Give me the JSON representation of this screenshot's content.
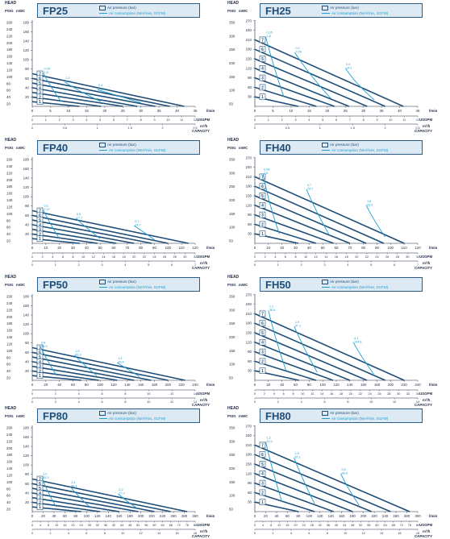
{
  "labels": {
    "head": "HEAD",
    "psig": "PSIG",
    "mwc": "mWC",
    "legend_pressure": "Air pressure (bar)",
    "legend_consumption": "Air consumption (Nm³/min, SCFM)",
    "unit_lmin": "l/min",
    "unit_usgpm": "USGPM",
    "unit_m3h": "m³/h",
    "capacity": "CAPACITY"
  },
  "colors": {
    "pressure": "#1f4e79",
    "consumption": "#1d9fd0",
    "box": "#dde9f3"
  },
  "chart_data": [
    {
      "type": "line",
      "model": "FP25",
      "psig_ticks": [
        "260",
        "240",
        "220",
        "200",
        "180",
        "160",
        "140",
        "120",
        "100",
        "80",
        "60",
        "40",
        "20"
      ],
      "mwc_ticks": [
        "180",
        "160",
        "140",
        "120",
        "100",
        "80",
        "60",
        "40",
        "20"
      ],
      "mwc_max": 185,
      "lmin_ticks": [
        "0",
        "5",
        "10",
        "15",
        "20",
        "25",
        "30",
        "35",
        "40",
        "45"
      ],
      "lmin_max": 45,
      "usgpm_ticks": [
        "0",
        "1",
        "2",
        "3",
        "4",
        "5",
        "6",
        "7",
        "8",
        "9",
        "10",
        "11",
        "12"
      ],
      "m3h_ticks": [
        "0",
        "0,5",
        "1",
        "1,5",
        "2",
        "2,5"
      ],
      "pressure_series": [
        {
          "name": "7",
          "head": 70,
          "qmax": 42
        },
        {
          "name": "6",
          "head": 60,
          "qmax": 38
        },
        {
          "name": "5",
          "head": 50,
          "qmax": 34
        },
        {
          "name": "4",
          "head": 40,
          "qmax": 29
        },
        {
          "name": "3",
          "head": 30,
          "qmax": 25
        },
        {
          "name": "2",
          "head": 20,
          "qmax": 19
        },
        {
          "name": "1",
          "head": 10,
          "qmax": 13
        }
      ],
      "consumption_series": [
        {
          "label1": "0,05",
          "label2": "1,8",
          "x": [
            3,
            5,
            8
          ],
          "y": [
            72,
            42,
            10
          ]
        },
        {
          "label1": "0,2",
          "label2": "7,06",
          "x": [
            9,
            13,
            19
          ],
          "y": [
            52,
            32,
            10
          ]
        },
        {
          "label1": "0,4",
          "label2": "14,1",
          "x": [
            18,
            24,
            30
          ],
          "y": [
            36,
            22,
            8
          ]
        }
      ]
    },
    {
      "type": "line",
      "model": "FH25",
      "psig_ticks": [
        "350",
        "300",
        "250",
        "200",
        "150",
        "100",
        "50"
      ],
      "mwc_ticks": [
        "270",
        "240",
        "210",
        "180",
        "150",
        "120",
        "90",
        "60",
        "30"
      ],
      "mwc_max": 272,
      "lmin_ticks": [
        "0",
        "5",
        "10",
        "15",
        "20",
        "25",
        "30",
        "35",
        "40",
        "45"
      ],
      "lmin_max": 45,
      "usgpm_ticks": [
        "0",
        "1",
        "2",
        "3",
        "4",
        "5",
        "6",
        "7",
        "8",
        "9",
        "10",
        "11",
        "12"
      ],
      "m3h_ticks": [
        "0",
        "0,5",
        "1",
        "1,5",
        "2",
        "2,5"
      ],
      "pressure_series": [
        {
          "name": "7",
          "head": 210,
          "qmax": 41
        },
        {
          "name": "6",
          "head": 180,
          "qmax": 36
        },
        {
          "name": "5",
          "head": 150,
          "qmax": 31
        },
        {
          "name": "4",
          "head": 120,
          "qmax": 26
        },
        {
          "name": "3",
          "head": 90,
          "qmax": 22
        },
        {
          "name": "2",
          "head": 60,
          "qmax": 17
        },
        {
          "name": "1",
          "head": 30,
          "qmax": 12
        }
      ],
      "consumption_series": [
        {
          "label1": "0,05",
          "label2": "1,8",
          "x": [
            3,
            5,
            8
          ],
          "y": [
            220,
            130,
            30
          ]
        },
        {
          "label1": "0,2",
          "label2": "7,06",
          "x": [
            11,
            15,
            21
          ],
          "y": [
            170,
            100,
            25
          ]
        },
        {
          "label1": "0,4",
          "label2": "14,1",
          "x": [
            25,
            28,
            33
          ],
          "y": [
            120,
            70,
            20
          ]
        }
      ]
    },
    {
      "type": "line",
      "model": "FP40",
      "psig_ticks": [
        "260",
        "240",
        "220",
        "200",
        "180",
        "160",
        "140",
        "120",
        "100",
        "80",
        "60",
        "40",
        "20"
      ],
      "mwc_ticks": [
        "180",
        "160",
        "140",
        "120",
        "100",
        "80",
        "60",
        "40",
        "20"
      ],
      "mwc_max": 185,
      "lmin_ticks": [
        "0",
        "10",
        "20",
        "30",
        "40",
        "50",
        "60",
        "70",
        "80",
        "90",
        "100",
        "110",
        "120"
      ],
      "lmin_max": 120,
      "usgpm_ticks": [
        "0",
        "2",
        "4",
        "6",
        "8",
        "10",
        "12",
        "14",
        "16",
        "18",
        "20",
        "22",
        "24",
        "26",
        "28",
        "30",
        "32"
      ],
      "m3h_ticks": [
        "0",
        "1",
        "2",
        "3",
        "4",
        "5",
        "6",
        "7"
      ],
      "pressure_series": [
        {
          "name": "7",
          "head": 70,
          "qmax": 115
        },
        {
          "name": "6",
          "head": 60,
          "qmax": 100
        },
        {
          "name": "5",
          "head": 50,
          "qmax": 88
        },
        {
          "name": "4",
          "head": 40,
          "qmax": 75
        },
        {
          "name": "3",
          "head": 30,
          "qmax": 62
        },
        {
          "name": "2",
          "head": 20,
          "qmax": 48
        },
        {
          "name": "1",
          "head": 10,
          "qmax": 35
        }
      ],
      "consumption_series": [
        {
          "label1": "0,2",
          "label2": "7,07",
          "x": [
            8,
            13,
            20
          ],
          "y": [
            72,
            42,
            10
          ]
        },
        {
          "label1": "0,5",
          "label2": "17,7",
          "x": [
            32,
            40,
            50
          ],
          "y": [
            54,
            33,
            10
          ]
        },
        {
          "label1": "0,7",
          "label2": "24,7",
          "x": [
            75,
            82,
            90
          ],
          "y": [
            38,
            24,
            8
          ]
        }
      ]
    },
    {
      "type": "line",
      "model": "FH40",
      "psig_ticks": [
        "350",
        "300",
        "250",
        "200",
        "150",
        "100",
        "50"
      ],
      "mwc_ticks": [
        "270",
        "240",
        "210",
        "180",
        "150",
        "120",
        "90",
        "60",
        "30"
      ],
      "mwc_max": 272,
      "lmin_ticks": [
        "0",
        "10",
        "20",
        "30",
        "40",
        "50",
        "60",
        "70",
        "80",
        "90",
        "100",
        "110",
        "120"
      ],
      "lmin_max": 120,
      "usgpm_ticks": [
        "0",
        "2",
        "4",
        "6",
        "8",
        "10",
        "12",
        "14",
        "16",
        "18",
        "20",
        "22",
        "24",
        "26",
        "28",
        "30",
        "32"
      ],
      "m3h_ticks": [
        "0",
        "1",
        "2",
        "3",
        "4",
        "5",
        "6",
        "7"
      ],
      "pressure_series": [
        {
          "name": "7",
          "head": 210,
          "qmax": 110
        },
        {
          "name": "6",
          "head": 180,
          "qmax": 95
        },
        {
          "name": "5",
          "head": 150,
          "qmax": 82
        },
        {
          "name": "4",
          "head": 120,
          "qmax": 70
        },
        {
          "name": "3",
          "head": 90,
          "qmax": 58
        },
        {
          "name": "2",
          "head": 60,
          "qmax": 45
        },
        {
          "name": "1",
          "head": 30,
          "qmax": 32
        }
      ],
      "consumption_series": [
        {
          "label1": "0,08",
          "label2": "2,8",
          "x": [
            6,
            10,
            18
          ],
          "y": [
            220,
            130,
            30
          ]
        },
        {
          "label1": "0,7",
          "label2": "24,7",
          "x": [
            38,
            45,
            55
          ],
          "y": [
            170,
            100,
            25
          ]
        },
        {
          "label1": "1,8",
          "label2": "63,5",
          "x": [
            82,
            88,
            96
          ],
          "y": [
            120,
            70,
            20
          ]
        }
      ]
    },
    {
      "type": "line",
      "model": "FP50",
      "psig_ticks": [
        "260",
        "240",
        "220",
        "200",
        "180",
        "160",
        "140",
        "120",
        "100",
        "80",
        "60",
        "40",
        "20"
      ],
      "mwc_ticks": [
        "180",
        "160",
        "140",
        "120",
        "100",
        "80",
        "60",
        "40",
        "20"
      ],
      "mwc_max": 185,
      "lmin_ticks": [
        "0",
        "20",
        "40",
        "60",
        "80",
        "100",
        "120",
        "140",
        "160",
        "180",
        "200",
        "220",
        "240"
      ],
      "lmin_max": 240,
      "usgpm_ticks": [
        "0",
        "2",
        "4",
        "6",
        "8",
        "10",
        "12",
        "14"
      ],
      "m3h_ticks": [
        "0",
        "2",
        "4",
        "6",
        "8",
        "10",
        "12",
        "14"
      ],
      "pressure_series": [
        {
          "name": "7",
          "head": 70,
          "qmax": 225
        },
        {
          "name": "6",
          "head": 60,
          "qmax": 200
        },
        {
          "name": "5",
          "head": 50,
          "qmax": 175
        },
        {
          "name": "4",
          "head": 40,
          "qmax": 150
        },
        {
          "name": "3",
          "head": 30,
          "qmax": 125
        },
        {
          "name": "2",
          "head": 20,
          "qmax": 98
        },
        {
          "name": "1",
          "head": 10,
          "qmax": 72
        }
      ],
      "consumption_series": [
        {
          "label1": "0,8",
          "label2": "28,3",
          "x": [
            12,
            22,
            36
          ],
          "y": [
            72,
            42,
            10
          ]
        },
        {
          "label1": "1,0",
          "label2": "35,3",
          "x": [
            62,
            76,
            95
          ],
          "y": [
            54,
            33,
            10
          ]
        },
        {
          "label1": "1,4",
          "label2": "49,4",
          "x": [
            125,
            140,
            158
          ],
          "y": [
            38,
            24,
            8
          ]
        }
      ]
    },
    {
      "type": "line",
      "model": "FH50",
      "psig_ticks": [
        "350",
        "300",
        "250",
        "200",
        "150",
        "100",
        "50"
      ],
      "mwc_ticks": [
        "270",
        "240",
        "210",
        "180",
        "150",
        "120",
        "90",
        "60",
        "30"
      ],
      "mwc_max": 272,
      "lmin_ticks": [
        "0",
        "20",
        "40",
        "60",
        "80",
        "100",
        "120",
        "140",
        "160",
        "180",
        "200",
        "220",
        "240"
      ],
      "lmin_max": 240,
      "usgpm_ticks": [
        "0",
        "2",
        "4",
        "6",
        "8",
        "10",
        "12",
        "14",
        "16",
        "18",
        "20",
        "22",
        "24",
        "26",
        "28",
        "30",
        "32",
        "34"
      ],
      "m3h_ticks": [
        "0",
        "2",
        "4",
        "6",
        "8",
        "10",
        "12",
        "14"
      ],
      "pressure_series": [
        {
          "name": "7",
          "head": 210,
          "qmax": 220
        },
        {
          "name": "6",
          "head": 180,
          "qmax": 192
        },
        {
          "name": "5",
          "head": 150,
          "qmax": 165
        },
        {
          "name": "4",
          "head": 120,
          "qmax": 140
        },
        {
          "name": "3",
          "head": 90,
          "qmax": 115
        },
        {
          "name": "2",
          "head": 60,
          "qmax": 90
        },
        {
          "name": "1",
          "head": 30,
          "qmax": 65
        }
      ],
      "consumption_series": [
        {
          "label1": "1,1",
          "label2": "38,8",
          "x": [
            20,
            30,
            46
          ],
          "y": [
            220,
            130,
            30
          ]
        },
        {
          "label1": "1,9",
          "label2": "67,1",
          "x": [
            58,
            72,
            92
          ],
          "y": [
            170,
            100,
            25
          ]
        },
        {
          "label1": "4,1",
          "label2": "144,8",
          "x": [
            145,
            158,
            175
          ],
          "y": [
            120,
            70,
            20
          ]
        }
      ]
    },
    {
      "type": "line",
      "model": "FP80",
      "psig_ticks": [
        "260",
        "240",
        "220",
        "200",
        "180",
        "160",
        "140",
        "120",
        "100",
        "80",
        "60",
        "40",
        "20"
      ],
      "mwc_ticks": [
        "180",
        "160",
        "140",
        "120",
        "100",
        "80",
        "60",
        "40",
        "20"
      ],
      "mwc_max": 185,
      "lmin_ticks": [
        "0",
        "20",
        "40",
        "60",
        "80",
        "100",
        "120",
        "140",
        "160",
        "180",
        "200",
        "220",
        "240",
        "260",
        "280",
        "300"
      ],
      "lmin_max": 300,
      "usgpm_ticks": [
        "0",
        "4",
        "8",
        "12",
        "16",
        "20",
        "24",
        "28",
        "32",
        "36",
        "40",
        "44",
        "48",
        "52",
        "56",
        "60",
        "64",
        "68",
        "72",
        "76",
        "80"
      ],
      "m3h_ticks": [
        "0",
        "2",
        "4",
        "6",
        "8",
        "10",
        "12",
        "14",
        "16",
        "18"
      ],
      "pressure_series": [
        {
          "name": "7",
          "head": 70,
          "qmax": 285
        },
        {
          "name": "6",
          "head": 60,
          "qmax": 255
        },
        {
          "name": "5",
          "head": 50,
          "qmax": 225
        },
        {
          "name": "4",
          "head": 40,
          "qmax": 195
        },
        {
          "name": "3",
          "head": 30,
          "qmax": 160
        },
        {
          "name": "2",
          "head": 20,
          "qmax": 125
        },
        {
          "name": "1",
          "head": 10,
          "qmax": 90
        }
      ],
      "consumption_series": [
        {
          "label1": "1,0",
          "label2": "35,3",
          "x": [
            18,
            28,
            44
          ],
          "y": [
            72,
            42,
            10
          ]
        },
        {
          "label1": "1,4",
          "label2": "49,4",
          "x": [
            70,
            84,
            106
          ],
          "y": [
            54,
            33,
            10
          ]
        },
        {
          "label1": "2,2",
          "label2": "77,7",
          "x": [
            158,
            172,
            192
          ],
          "y": [
            38,
            24,
            8
          ]
        }
      ]
    },
    {
      "type": "line",
      "model": "FH80",
      "psig_ticks": [
        "350",
        "300",
        "250",
        "200",
        "150",
        "100",
        "50"
      ],
      "mwc_ticks": [
        "270",
        "240",
        "210",
        "180",
        "150",
        "120",
        "90",
        "60",
        "30"
      ],
      "mwc_max": 272,
      "lmin_ticks": [
        "0",
        "20",
        "40",
        "60",
        "80",
        "100",
        "120",
        "140",
        "160",
        "180",
        "200",
        "220",
        "240",
        "260",
        "280",
        "300"
      ],
      "lmin_max": 300,
      "usgpm_ticks": [
        "0",
        "4",
        "8",
        "12",
        "16",
        "20",
        "24",
        "28",
        "32",
        "36",
        "40",
        "44",
        "48",
        "52",
        "56",
        "60",
        "64",
        "68",
        "72",
        "76",
        "80"
      ],
      "m3h_ticks": [
        "0",
        "2",
        "4",
        "6",
        "8",
        "10",
        "12",
        "14",
        "16",
        "18"
      ],
      "pressure_series": [
        {
          "name": "7",
          "head": 210,
          "qmax": 285
        },
        {
          "name": "6",
          "head": 180,
          "qmax": 250
        },
        {
          "name": "5",
          "head": 150,
          "qmax": 215
        },
        {
          "name": "4",
          "head": 120,
          "qmax": 180
        },
        {
          "name": "3",
          "head": 90,
          "qmax": 145
        },
        {
          "name": "2",
          "head": 60,
          "qmax": 110
        },
        {
          "name": "1",
          "head": 30,
          "qmax": 80
        }
      ],
      "consumption_series": [
        {
          "label1": "1,2",
          "label2": "42,4",
          "x": [
            20,
            32,
            50
          ],
          "y": [
            220,
            130,
            30
          ]
        },
        {
          "label1": "1,9",
          "label2": "67,1",
          "x": [
            72,
            88,
            110
          ],
          "y": [
            170,
            100,
            25
          ]
        },
        {
          "label1": "2,8",
          "label2": "98,9",
          "x": [
            158,
            172,
            192
          ],
          "y": [
            120,
            70,
            20
          ]
        }
      ]
    }
  ]
}
